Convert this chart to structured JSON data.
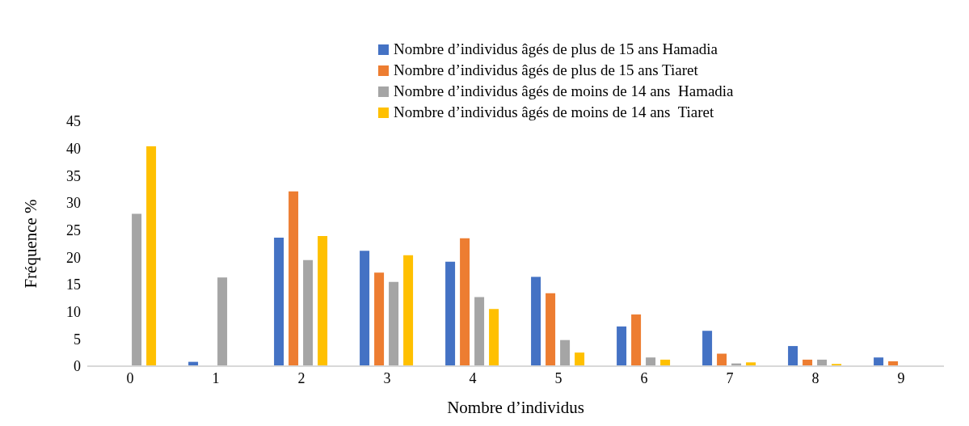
{
  "chart_data": {
    "type": "bar",
    "xlabel": "Nombre d’individus",
    "ylabel": "Fréquence %",
    "categories": [
      "0",
      "1",
      "2",
      "3",
      "4",
      "5",
      "6",
      "7",
      "8",
      "9"
    ],
    "series": [
      {
        "name": "Nombre d’individus âgés de plus de 15 ans Hamadia",
        "color": "#4472c4",
        "values": [
          0,
          0.8,
          23.6,
          21.2,
          19.2,
          16.4,
          7.3,
          6.5,
          3.7,
          1.6
        ]
      },
      {
        "name": "Nombre d’individus âgés de plus de 15 ans Tiaret",
        "color": "#ed7d31",
        "values": [
          0,
          0,
          32.1,
          17.2,
          23.5,
          13.4,
          9.5,
          2.3,
          1.2,
          0.9
        ]
      },
      {
        "name": "Nombre d’individus âgés de moins de 14 ans  Hamadia",
        "color": "#a5a5a5",
        "values": [
          28,
          16.3,
          19.5,
          15.5,
          12.7,
          4.8,
          1.6,
          0.5,
          1.2,
          0
        ]
      },
      {
        "name": "Nombre d’individus âgés de moins de 14 ans  Tiaret",
        "color": "#ffc000",
        "values": [
          40.4,
          0,
          23.9,
          20.4,
          10.5,
          2.5,
          1.2,
          0.7,
          0.4,
          0
        ]
      }
    ],
    "ylim": [
      0,
      45
    ],
    "yticks": [
      0,
      5,
      10,
      15,
      20,
      25,
      30,
      35,
      40,
      45
    ],
    "grid": false,
    "legend": "top right"
  }
}
